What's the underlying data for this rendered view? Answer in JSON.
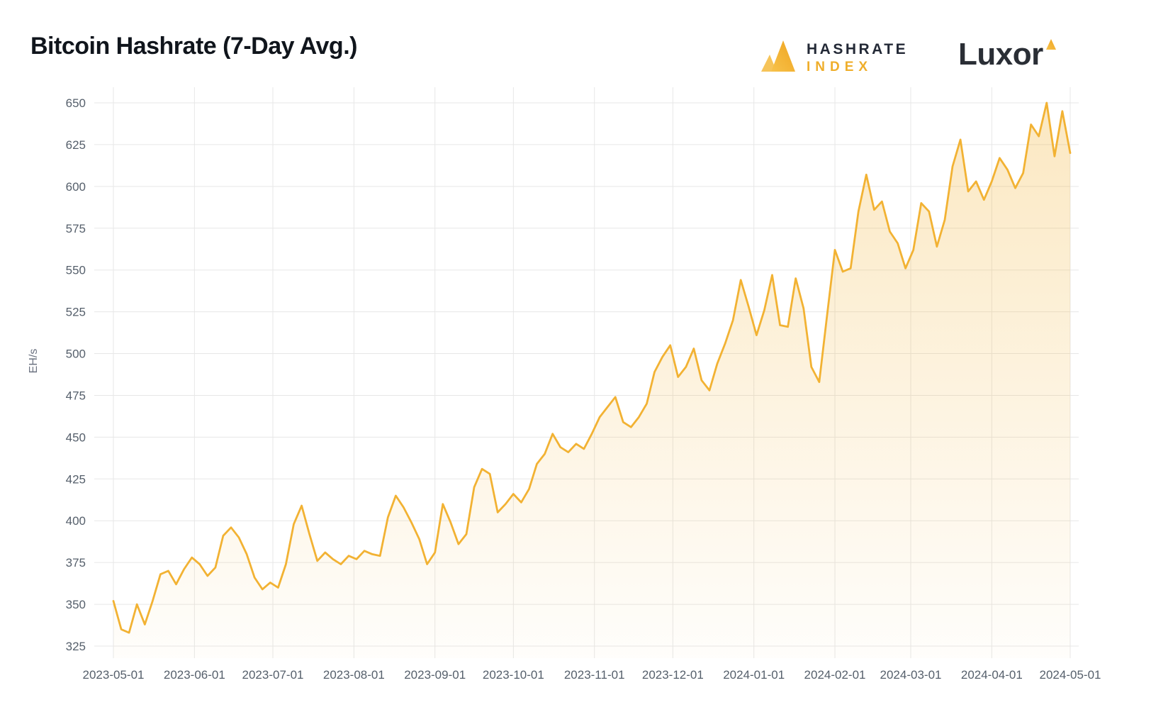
{
  "page": {
    "title": "Bitcoin Hashrate (7-Day Avg.)"
  },
  "branding": {
    "hashrate_index": {
      "line1": "HASHRATE",
      "line2": "INDEX",
      "logo_icon": "hashrate-index-triangles-icon",
      "color": "#EFAE2B"
    },
    "luxor": {
      "word": "Luxor",
      "logo_icon": "luxor-triangle-icon",
      "color": "#F5B32B"
    }
  },
  "chart_data": {
    "type": "area",
    "title": "Bitcoin Hashrate (7-Day Avg.)",
    "xlabel": "",
    "ylabel": "EH/s",
    "ylim": [
      325,
      650
    ],
    "grid": true,
    "legend": "none",
    "line_color": "#F2B233",
    "grid_color": "#e7e7e7",
    "tick_color": "#555f6b",
    "y_ticks": [
      325,
      350,
      375,
      400,
      425,
      450,
      475,
      500,
      525,
      550,
      575,
      600,
      625,
      650
    ],
    "x_tick_labels": [
      "2023-05-01",
      "2023-06-01",
      "2023-07-01",
      "2023-08-01",
      "2023-09-01",
      "2023-10-01",
      "2023-11-01",
      "2023-12-01",
      "2024-01-01",
      "2024-02-01",
      "2024-03-01",
      "2024-04-01",
      "2024-05-01"
    ],
    "x": [
      "2023-05-01",
      "2023-05-04",
      "2023-05-07",
      "2023-05-10",
      "2023-05-13",
      "2023-05-16",
      "2023-05-19",
      "2023-05-22",
      "2023-05-25",
      "2023-05-28",
      "2023-05-31",
      "2023-06-03",
      "2023-06-06",
      "2023-06-09",
      "2023-06-12",
      "2023-06-15",
      "2023-06-18",
      "2023-06-21",
      "2023-06-24",
      "2023-06-27",
      "2023-06-30",
      "2023-07-03",
      "2023-07-06",
      "2023-07-09",
      "2023-07-12",
      "2023-07-15",
      "2023-07-18",
      "2023-07-21",
      "2023-07-24",
      "2023-07-27",
      "2023-07-30",
      "2023-08-02",
      "2023-08-05",
      "2023-08-08",
      "2023-08-11",
      "2023-08-14",
      "2023-08-17",
      "2023-08-20",
      "2023-08-23",
      "2023-08-26",
      "2023-08-29",
      "2023-09-01",
      "2023-09-04",
      "2023-09-07",
      "2023-09-10",
      "2023-09-13",
      "2023-09-16",
      "2023-09-19",
      "2023-09-22",
      "2023-09-25",
      "2023-09-28",
      "2023-10-01",
      "2023-10-04",
      "2023-10-07",
      "2023-10-10",
      "2023-10-13",
      "2023-10-16",
      "2023-10-19",
      "2023-10-22",
      "2023-10-25",
      "2023-10-28",
      "2023-10-31",
      "2023-11-03",
      "2023-11-06",
      "2023-11-09",
      "2023-11-12",
      "2023-11-15",
      "2023-11-18",
      "2023-11-21",
      "2023-11-24",
      "2023-11-27",
      "2023-11-30",
      "2023-12-03",
      "2023-12-06",
      "2023-12-09",
      "2023-12-12",
      "2023-12-15",
      "2023-12-18",
      "2023-12-21",
      "2023-12-24",
      "2023-12-27",
      "2023-12-30",
      "2024-01-02",
      "2024-01-05",
      "2024-01-08",
      "2024-01-11",
      "2024-01-14",
      "2024-01-17",
      "2024-01-20",
      "2024-01-23",
      "2024-01-26",
      "2024-01-29",
      "2024-02-01",
      "2024-02-04",
      "2024-02-07",
      "2024-02-10",
      "2024-02-13",
      "2024-02-16",
      "2024-02-19",
      "2024-02-22",
      "2024-02-25",
      "2024-02-28",
      "2024-03-02",
      "2024-03-05",
      "2024-03-08",
      "2024-03-11",
      "2024-03-14",
      "2024-03-17",
      "2024-03-20",
      "2024-03-23",
      "2024-03-26",
      "2024-03-29",
      "2024-04-01",
      "2024-04-04",
      "2024-04-07",
      "2024-04-10",
      "2024-04-13",
      "2024-04-16",
      "2024-04-19",
      "2024-04-22",
      "2024-04-25",
      "2024-04-28",
      "2024-05-01"
    ],
    "values": [
      352,
      335,
      333,
      350,
      338,
      352,
      368,
      370,
      362,
      371,
      378,
      374,
      367,
      372,
      391,
      396,
      390,
      380,
      366,
      359,
      363,
      360,
      374,
      398,
      409,
      392,
      376,
      381,
      377,
      374,
      379,
      377,
      382,
      380,
      379,
      402,
      415,
      408,
      399,
      389,
      374,
      381,
      410,
      399,
      386,
      392,
      420,
      431,
      428,
      405,
      410,
      416,
      411,
      419,
      434,
      440,
      452,
      444,
      441,
      446,
      443,
      452,
      462,
      468,
      474,
      459,
      456,
      462,
      470,
      489,
      498,
      505,
      486,
      492,
      503,
      484,
      478,
      494,
      506,
      520,
      544,
      528,
      511,
      526,
      547,
      517,
      516,
      545,
      527,
      492,
      483,
      523,
      562,
      549,
      551,
      585,
      607,
      586,
      591,
      573,
      566,
      551,
      562,
      590,
      585,
      564,
      580,
      612,
      628,
      597,
      603,
      592,
      603,
      617,
      610,
      599,
      608,
      637,
      630,
      650,
      618,
      645,
      620
    ]
  }
}
